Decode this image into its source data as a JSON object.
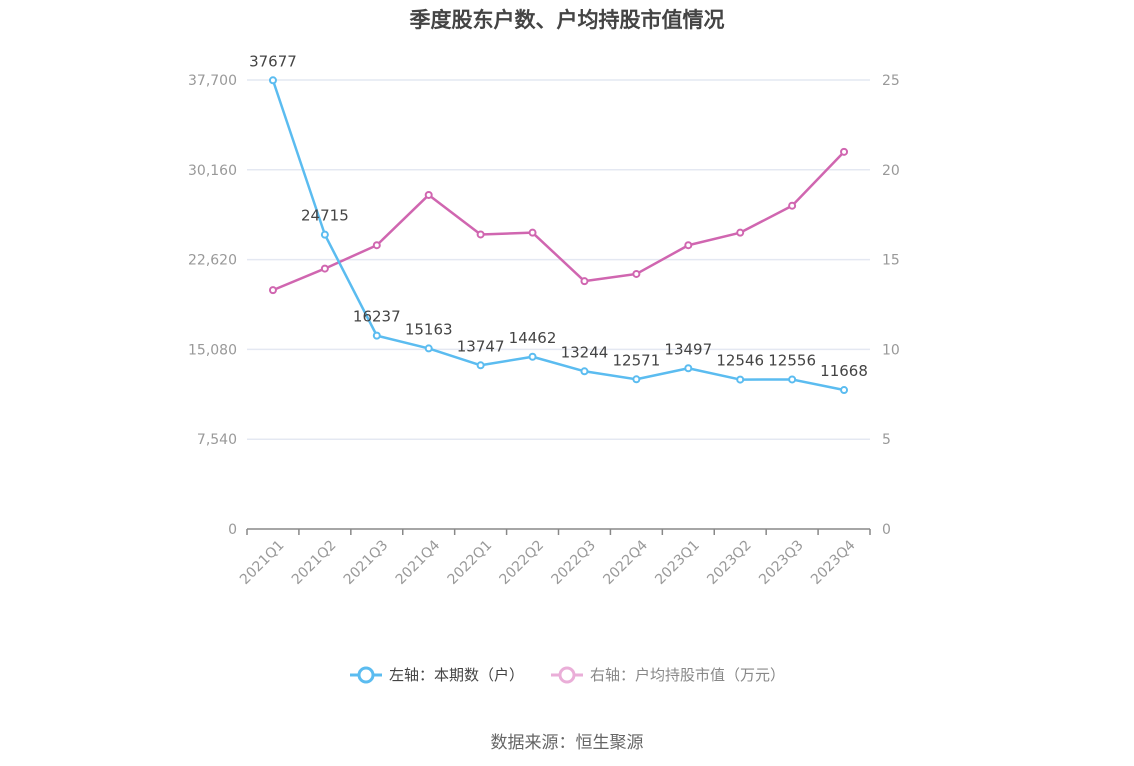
{
  "title": "季度股东户数、户均持股市值情况",
  "source": "数据来源：恒生聚源",
  "colors": {
    "left_series": "#5bbcf0",
    "right_series": "#d066b0",
    "grid": "#e4e8f2",
    "axis": "#888888",
    "tick_text": "#999999"
  },
  "chart_data": {
    "type": "line",
    "categories": [
      "2021Q1",
      "2021Q2",
      "2021Q3",
      "2021Q4",
      "2022Q1",
      "2022Q2",
      "2022Q3",
      "2022Q4",
      "2023Q1",
      "2023Q2",
      "2023Q3",
      "2023Q4"
    ],
    "left_axis": {
      "min": 0,
      "max": 37700,
      "ticks": [
        0,
        7540,
        15080,
        22620,
        30160,
        37700
      ],
      "tick_labels": [
        "0",
        "7,540",
        "15,080",
        "22,620",
        "30,160",
        "37,700"
      ]
    },
    "right_axis": {
      "min": 0,
      "max": 25,
      "ticks": [
        0,
        5,
        10,
        15,
        20,
        25
      ],
      "tick_labels": [
        "0",
        "5",
        "10",
        "15",
        "20",
        "25"
      ]
    },
    "series": [
      {
        "name": "左轴：本期数（户）",
        "axis": "left",
        "show_labels": true,
        "values": [
          37677,
          24715,
          16237,
          15163,
          13747,
          14462,
          13244,
          12571,
          13497,
          12546,
          12556,
          11668
        ]
      },
      {
        "name": "右轴：户均持股市值（万元）",
        "axis": "right",
        "show_labels": false,
        "values": [
          13.3,
          14.5,
          15.8,
          18.6,
          16.4,
          16.5,
          13.8,
          14.2,
          15.8,
          16.5,
          18.0,
          21.0
        ]
      }
    ],
    "grid": true,
    "legend_position": "bottom-center"
  }
}
